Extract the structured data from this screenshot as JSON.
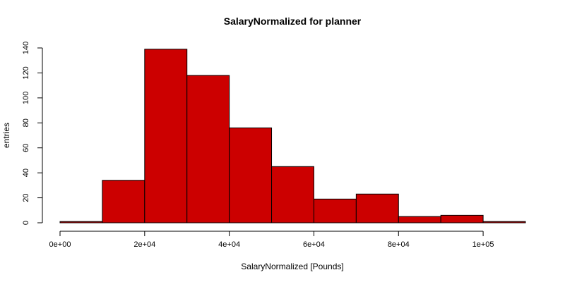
{
  "chart_data": {
    "type": "bar",
    "title": "SalaryNormalized for planner",
    "xlabel": "SalaryNormalized [Pounds]",
    "ylabel": "entries",
    "bin_edges": [
      0,
      10000,
      20000,
      30000,
      40000,
      50000,
      60000,
      70000,
      80000,
      90000,
      100000,
      110000
    ],
    "values": [
      1,
      34,
      139,
      118,
      76,
      45,
      19,
      23,
      5,
      6,
      1
    ],
    "xlim": [
      0,
      110000
    ],
    "ylim": [
      0,
      140
    ],
    "x_ticks": [
      0,
      20000,
      40000,
      60000,
      80000,
      100000
    ],
    "x_tick_labels": [
      "0e+00",
      "2e+04",
      "4e+04",
      "6e+04",
      "8e+04",
      "1e+05"
    ],
    "y_ticks": [
      0,
      20,
      40,
      60,
      80,
      100,
      120,
      140
    ],
    "y_tick_labels": [
      "0",
      "20",
      "40",
      "60",
      "80",
      "100",
      "120",
      "140"
    ],
    "bar_color": "#cc0000",
    "grid": false,
    "legend": "none"
  }
}
